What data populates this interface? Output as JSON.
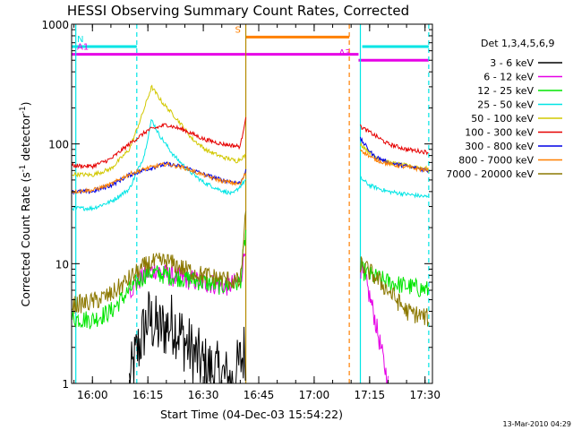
{
  "chart_data": {
    "type": "line",
    "title": "HESSI Observing Summary Count Rates, Corrected",
    "xlabel": "Start Time (04-Dec-03 15:54:22)",
    "ylabel": "Corrected Count Rate (s",
    "ylabel_sup1": "-1",
    "ylabel_mid": " detector",
    "ylabel_sup2": "-1",
    "ylabel_end": ")",
    "y_scale": "log",
    "ylim": [
      1,
      1000
    ],
    "xlim": [
      "15:54:22",
      "17:32:00"
    ],
    "x_ticks": [
      "16:00",
      "16:15",
      "16:30",
      "16:45",
      "17:00",
      "17:15",
      "17:30"
    ],
    "y_ticks": [
      "1",
      "10",
      "100",
      "1000"
    ],
    "legend_title": "Det 1,3,4,5,6,9",
    "legend_position": "right",
    "timestamp": "13-Mar-2010 04:29",
    "flags": [
      {
        "label": "N",
        "color": "#00e5e5",
        "level": 650,
        "segments": [
          [
            "15:54:22",
            "16:12:00"
          ],
          [
            "17:13:00",
            "17:31:00"
          ]
        ]
      },
      {
        "label": "S",
        "color": "#ff8000",
        "level": 780,
        "segments": [
          [
            "16:41:30",
            "17:09:30"
          ]
        ]
      },
      {
        "label": "A1",
        "color": "#e600e6",
        "level": 560,
        "segments": [
          [
            "15:54:22",
            "17:12:00"
          ]
        ]
      },
      {
        "label": "A3",
        "color": "#e600e6",
        "level": 500,
        "segments": [
          [
            "17:12:00",
            "17:31:00"
          ]
        ]
      }
    ],
    "vlines": [
      {
        "time": "15:55:30",
        "color": "#00e5e5",
        "style": "solid"
      },
      {
        "time": "16:12:00",
        "color": "#00e5e5",
        "style": "dashed"
      },
      {
        "time": "16:41:30",
        "color": "#b58a00",
        "style": "solid"
      },
      {
        "time": "17:09:30",
        "color": "#ff8000",
        "style": "dashed"
      },
      {
        "time": "17:12:30",
        "color": "#00e5e5",
        "style": "solid"
      },
      {
        "time": "17:31:00",
        "color": "#00e5e5",
        "style": "dashed"
      }
    ],
    "series": [
      {
        "name": "3 - 6 keV",
        "color": "#000000",
        "gaps": [
          [
            "16:42:00",
            "17:12:30"
          ]
        ],
        "points": [
          [
            "16:10:00",
            1
          ],
          [
            "16:12:00",
            1.8
          ],
          [
            "16:15:00",
            3.5
          ],
          [
            "16:18:00",
            2.8
          ],
          [
            "16:22:00",
            3.2
          ],
          [
            "16:26:00",
            2
          ],
          [
            "16:30:00",
            1.4
          ],
          [
            "16:34:00",
            1.2
          ],
          [
            "16:38:00",
            1
          ],
          [
            "16:40:00",
            1.5
          ],
          [
            "16:41:30",
            2
          ]
        ]
      },
      {
        "name": "6 - 12 keV",
        "color": "#e600e6",
        "gaps": [
          [
            "16:42:00",
            "17:12:30"
          ]
        ],
        "points": [
          [
            "16:10:00",
            6
          ],
          [
            "16:14:00",
            8
          ],
          [
            "16:17:00",
            9
          ],
          [
            "16:20:00",
            8
          ],
          [
            "16:25:00",
            7.5
          ],
          [
            "16:30:00",
            7
          ],
          [
            "16:36:00",
            6.5
          ],
          [
            "16:40:00",
            7
          ],
          [
            "16:41:30",
            15
          ],
          [
            "17:12:30",
            9
          ],
          [
            "17:14:00",
            7
          ],
          [
            "17:16:00",
            4
          ],
          [
            "17:18:00",
            2
          ],
          [
            "17:20:00",
            1
          ]
        ]
      },
      {
        "name": "12 - 25 keV",
        "color": "#00e600",
        "gaps": [
          [
            "16:42:00",
            "17:12:30"
          ]
        ],
        "points": [
          [
            "15:54:30",
            3.5
          ],
          [
            "16:00:00",
            3.4
          ],
          [
            "16:05:00",
            4
          ],
          [
            "16:10:00",
            6
          ],
          [
            "16:15:00",
            8.5
          ],
          [
            "16:20:00",
            8
          ],
          [
            "16:25:00",
            7.5
          ],
          [
            "16:30:00",
            7
          ],
          [
            "16:35:00",
            6.5
          ],
          [
            "16:40:00",
            7
          ],
          [
            "16:41:30",
            18
          ],
          [
            "17:12:30",
            9
          ],
          [
            "17:15:00",
            8
          ],
          [
            "17:20:00",
            7
          ],
          [
            "17:25:00",
            6.5
          ],
          [
            "17:31:00",
            6
          ]
        ]
      },
      {
        "name": "25 - 50 keV",
        "color": "#00e5e5",
        "gaps": [
          [
            "16:42:00",
            "17:12:30"
          ]
        ],
        "points": [
          [
            "15:54:30",
            29
          ],
          [
            "16:00:00",
            29
          ],
          [
            "16:05:00",
            33
          ],
          [
            "16:10:00",
            42
          ],
          [
            "16:14:00",
            80
          ],
          [
            "16:16:00",
            160
          ],
          [
            "16:18:00",
            120
          ],
          [
            "16:22:00",
            80
          ],
          [
            "16:26:00",
            60
          ],
          [
            "16:30:00",
            48
          ],
          [
            "16:34:00",
            42
          ],
          [
            "16:38:00",
            38
          ],
          [
            "16:41:30",
            50
          ],
          [
            "17:12:30",
            52
          ],
          [
            "17:15:00",
            45
          ],
          [
            "17:20:00",
            40
          ],
          [
            "17:25:00",
            38
          ],
          [
            "17:31:00",
            36
          ]
        ]
      },
      {
        "name": "50 - 100 keV",
        "color": "#d2c800",
        "gaps": [
          [
            "16:42:00",
            "17:12:30"
          ]
        ],
        "points": [
          [
            "15:54:30",
            56
          ],
          [
            "16:00:00",
            55
          ],
          [
            "16:05:00",
            62
          ],
          [
            "16:10:00",
            90
          ],
          [
            "16:13:00",
            160
          ],
          [
            "16:16:00",
            300
          ],
          [
            "16:19:00",
            220
          ],
          [
            "16:23:00",
            160
          ],
          [
            "16:27:00",
            110
          ],
          [
            "16:31:00",
            88
          ],
          [
            "16:35:00",
            78
          ],
          [
            "16:39:00",
            72
          ],
          [
            "16:41:30",
            80
          ],
          [
            "17:12:30",
            100
          ],
          [
            "17:16:00",
            80
          ],
          [
            "17:20:00",
            70
          ],
          [
            "17:25:00",
            66
          ],
          [
            "17:31:00",
            62
          ]
        ]
      },
      {
        "name": "100 - 300 keV",
        "color": "#e60000",
        "gaps": [
          [
            "16:42:00",
            "17:12:30"
          ]
        ],
        "points": [
          [
            "15:54:30",
            66
          ],
          [
            "16:00:00",
            65
          ],
          [
            "16:05:00",
            75
          ],
          [
            "16:10:00",
            100
          ],
          [
            "16:15:00",
            130
          ],
          [
            "16:20:00",
            145
          ],
          [
            "16:25:00",
            130
          ],
          [
            "16:30:00",
            110
          ],
          [
            "16:35:00",
            100
          ],
          [
            "16:40:00",
            95
          ],
          [
            "16:41:30",
            170
          ],
          [
            "17:12:30",
            140
          ],
          [
            "17:16:00",
            120
          ],
          [
            "17:20:00",
            100
          ],
          [
            "17:25:00",
            90
          ],
          [
            "17:31:00",
            85
          ]
        ]
      },
      {
        "name": "300 - 800 keV",
        "color": "#0000e6",
        "gaps": [
          [
            "16:42:00",
            "17:12:30"
          ]
        ],
        "points": [
          [
            "15:54:30",
            40
          ],
          [
            "16:00:00",
            40
          ],
          [
            "16:05:00",
            45
          ],
          [
            "16:10:00",
            55
          ],
          [
            "16:15:00",
            62
          ],
          [
            "16:20:00",
            68
          ],
          [
            "16:25:00",
            64
          ],
          [
            "16:30:00",
            56
          ],
          [
            "16:35:00",
            50
          ],
          [
            "16:40:00",
            47
          ],
          [
            "16:41:30",
            60
          ],
          [
            "17:12:30",
            110
          ],
          [
            "17:16:00",
            80
          ],
          [
            "17:20:00",
            70
          ],
          [
            "17:25:00",
            65
          ],
          [
            "17:31:00",
            60
          ]
        ]
      },
      {
        "name": "800 - 7000 keV",
        "color": "#ff8000",
        "gaps": [
          [
            "16:42:00",
            "17:12:30"
          ]
        ],
        "points": [
          [
            "15:54:30",
            40
          ],
          [
            "16:00:00",
            41
          ],
          [
            "16:05:00",
            46
          ],
          [
            "16:10:00",
            56
          ],
          [
            "16:15:00",
            63
          ],
          [
            "16:20:00",
            68
          ],
          [
            "16:25:00",
            63
          ],
          [
            "16:30:00",
            55
          ],
          [
            "16:35:00",
            49
          ],
          [
            "16:40:00",
            46
          ],
          [
            "16:41:30",
            58
          ],
          [
            "17:12:30",
            90
          ],
          [
            "17:16:00",
            75
          ],
          [
            "17:20:00",
            68
          ],
          [
            "17:25:00",
            64
          ],
          [
            "17:31:00",
            60
          ]
        ]
      },
      {
        "name": "7000 - 20000 keV",
        "color": "#8c7800",
        "gaps": [
          [
            "16:42:00",
            "17:12:30"
          ]
        ],
        "points": [
          [
            "15:54:30",
            4.5
          ],
          [
            "16:00:00",
            4.8
          ],
          [
            "16:05:00",
            5.5
          ],
          [
            "16:10:00",
            7.5
          ],
          [
            "16:15:00",
            10
          ],
          [
            "16:20:00",
            10.5
          ],
          [
            "16:25:00",
            9
          ],
          [
            "16:30:00",
            8
          ],
          [
            "16:35:00",
            7.5
          ],
          [
            "16:40:00",
            7
          ],
          [
            "16:41:30",
            25
          ],
          [
            "17:12:30",
            10
          ],
          [
            "17:16:00",
            8
          ],
          [
            "17:20:00",
            6
          ],
          [
            "17:25:00",
            4
          ],
          [
            "17:31:00",
            3.5
          ]
        ]
      }
    ]
  }
}
